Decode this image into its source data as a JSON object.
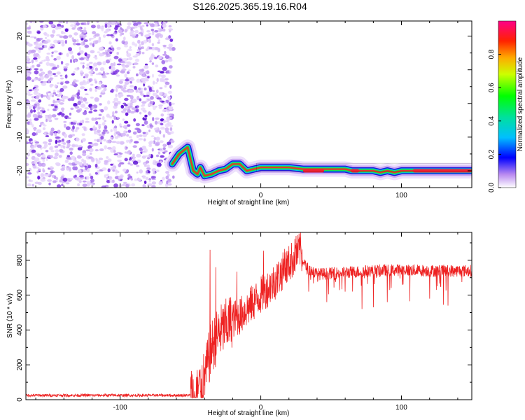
{
  "title": "S126.2025.365.19.16.R04",
  "colors": {
    "snr_line": "#ee2222",
    "ridge_core": "#e33333",
    "frame": "#000000"
  },
  "chart_data": [
    {
      "type": "heatmap",
      "name": "spectrogram",
      "xlabel": "Height of straight line (km)",
      "ylabel": "Frequency (Hz)",
      "xlim": [
        -167,
        150
      ],
      "ylim": [
        -25,
        24.5
      ],
      "xticks": [
        -100,
        0,
        100
      ],
      "xtick_labels": [
        "-100",
        "0",
        "100"
      ],
      "yticks": [
        -20,
        -10,
        0,
        10,
        20
      ],
      "ytick_labels": [
        "-20",
        "-10",
        "0",
        "10",
        "20"
      ],
      "noise_region_x": [
        -167,
        -62
      ],
      "ridge": {
        "x": [
          -63,
          -58,
          -52,
          -48,
          -45,
          -43,
          -40,
          -35,
          -30,
          -25,
          -20,
          -15,
          -10,
          -5,
          0,
          10,
          20,
          30,
          40,
          50,
          60,
          65,
          70,
          80,
          85,
          90,
          95,
          100,
          110,
          120,
          130,
          140,
          150
        ],
        "y": [
          -18,
          -15,
          -13,
          -20,
          -21,
          -19,
          -21.5,
          -21,
          -20,
          -19.5,
          -18,
          -18,
          -20,
          -19.5,
          -19,
          -19,
          -19,
          -19.5,
          -19.5,
          -19.5,
          -19.5,
          -20,
          -20,
          -20,
          -20.5,
          -20,
          -20.5,
          -20,
          -20,
          -20,
          -20,
          -20,
          -20
        ]
      },
      "colorbar": {
        "label": "Normalized spectral amplitude",
        "range": [
          0,
          1
        ],
        "ticks": [
          0.0,
          0.2,
          0.4,
          0.6,
          0.8
        ],
        "tick_labels": [
          "0.0",
          "0.2",
          "0.4",
          "0.6",
          "0.8"
        ]
      }
    },
    {
      "type": "line",
      "name": "snr",
      "xlabel": "Height of straight line (km)",
      "ylabel": "SNR (10 * v/v)",
      "xlim": [
        -167,
        150
      ],
      "ylim": [
        0,
        960
      ],
      "xticks": [
        -100,
        0,
        100
      ],
      "xtick_labels": [
        "-100",
        "0",
        "100"
      ],
      "yticks": [
        0,
        200,
        400,
        600,
        800
      ],
      "ytick_labels": [
        "0",
        "200",
        "400",
        "600",
        "800"
      ],
      "envelope": {
        "x": [
          -167,
          -50,
          -45,
          -40,
          -35,
          -30,
          -25,
          -20,
          -15,
          -10,
          -5,
          0,
          5,
          10,
          15,
          20,
          25,
          28,
          32,
          40,
          60,
          80,
          100,
          120,
          150
        ],
        "y": [
          25,
          25,
          40,
          130,
          300,
          380,
          420,
          460,
          480,
          520,
          560,
          600,
          640,
          680,
          730,
          780,
          830,
          860,
          760,
          720,
          730,
          740,
          745,
          740,
          740
        ]
      },
      "peaks": [
        {
          "x": -36,
          "y": 860
        },
        {
          "x": -32,
          "y": 760
        },
        {
          "x": -17,
          "y": 735
        },
        {
          "x": 2,
          "y": 855
        },
        {
          "x": 17,
          "y": 865
        },
        {
          "x": 25,
          "y": 940
        },
        {
          "x": 28,
          "y": 920
        }
      ],
      "dips": [
        {
          "x": 34,
          "y": 620
        },
        {
          "x": 47,
          "y": 560
        },
        {
          "x": 60,
          "y": 620
        },
        {
          "x": 72,
          "y": 520
        },
        {
          "x": 80,
          "y": 530
        },
        {
          "x": 90,
          "y": 560
        },
        {
          "x": 106,
          "y": 565
        },
        {
          "x": 120,
          "y": 580
        },
        {
          "x": 130,
          "y": 545
        },
        {
          "x": 133,
          "y": 540
        }
      ]
    }
  ]
}
